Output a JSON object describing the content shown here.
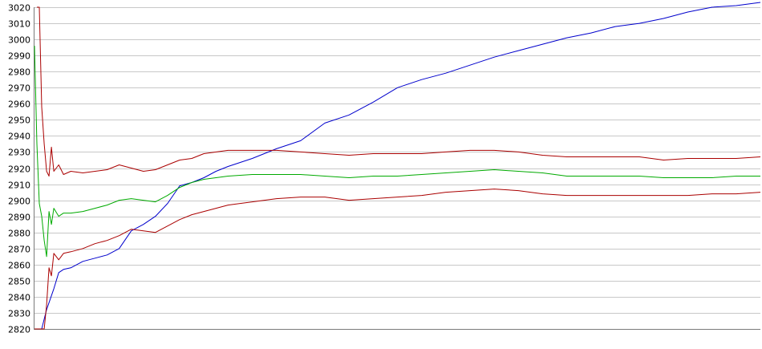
{
  "chart_data": {
    "type": "line",
    "title": "",
    "xlabel": "",
    "ylabel": "",
    "ylim": [
      2820,
      3020
    ],
    "yticks": [
      3020,
      3010,
      3000,
      2990,
      2980,
      2970,
      2960,
      2950,
      2940,
      2930,
      2920,
      2910,
      2900,
      2890,
      2880,
      2870,
      2860,
      2850,
      2840,
      2830,
      2820
    ],
    "xlim": [
      0,
      300
    ],
    "grid": true,
    "legend": "none",
    "series": [
      {
        "color": "#0000cc",
        "x": [
          0,
          3,
          5,
          8,
          10,
          12,
          15,
          20,
          25,
          30,
          35,
          40,
          45,
          50,
          55,
          60,
          65,
          70,
          75,
          80,
          90,
          100,
          110,
          120,
          130,
          140,
          150,
          160,
          170,
          180,
          190,
          200,
          210,
          220,
          230,
          240,
          250,
          260,
          270,
          280,
          290,
          295,
          300
        ],
        "values": [
          2820,
          2820,
          2832,
          2845,
          2855,
          2857,
          2858,
          2862,
          2864,
          2866,
          2870,
          2881,
          2885,
          2890,
          2898,
          2909,
          2911,
          2914,
          2918,
          2921,
          2926,
          2932,
          2937,
          2948,
          2953,
          2961,
          2970,
          2975,
          2979,
          2984,
          2989,
          2993,
          2997,
          3001,
          3004,
          3008,
          3010,
          3013,
          3017,
          3020,
          3021,
          3022,
          3023
        ]
      },
      {
        "color": "#00aa00",
        "x": [
          0,
          1,
          2,
          3,
          4,
          5,
          6,
          7,
          8,
          10,
          12,
          15,
          20,
          25,
          30,
          35,
          40,
          45,
          50,
          55,
          60,
          65,
          70,
          80,
          90,
          100,
          110,
          120,
          130,
          140,
          150,
          160,
          170,
          180,
          190,
          200,
          210,
          220,
          230,
          240,
          250,
          260,
          270,
          280,
          290,
          300
        ],
        "values": [
          2996,
          2935,
          2898,
          2890,
          2875,
          2865,
          2893,
          2885,
          2895,
          2890,
          2892,
          2892,
          2893,
          2895,
          2897,
          2900,
          2901,
          2900,
          2899,
          2903,
          2908,
          2911,
          2913,
          2915,
          2916,
          2916,
          2916,
          2915,
          2914,
          2915,
          2915,
          2916,
          2917,
          2918,
          2919,
          2918,
          2917,
          2915,
          2915,
          2915,
          2915,
          2914,
          2914,
          2914,
          2915,
          2915
        ]
      },
      {
        "color": "#aa0000",
        "x": [
          1,
          2,
          3,
          4,
          5,
          6,
          7,
          8,
          10,
          12,
          15,
          20,
          25,
          30,
          35,
          40,
          45,
          50,
          55,
          60,
          65,
          70,
          80,
          90,
          100,
          110,
          120,
          130,
          140,
          150,
          160,
          170,
          180,
          190,
          200,
          210,
          220,
          230,
          240,
          250,
          260,
          270,
          280,
          290,
          300
        ],
        "values": [
          3020,
          3020,
          2958,
          2935,
          2918,
          2915,
          2933,
          2918,
          2922,
          2916,
          2918,
          2917,
          2918,
          2919,
          2922,
          2920,
          2918,
          2919,
          2922,
          2925,
          2926,
          2929,
          2931,
          2931,
          2931,
          2930,
          2929,
          2928,
          2929,
          2929,
          2929,
          2930,
          2931,
          2931,
          2930,
          2928,
          2927,
          2927,
          2927,
          2927,
          2925,
          2926,
          2926,
          2926,
          2927
        ]
      },
      {
        "color": "#aa0000",
        "x": [
          0,
          3,
          4,
          5,
          6,
          7,
          8,
          10,
          12,
          15,
          20,
          25,
          30,
          35,
          40,
          45,
          50,
          55,
          60,
          65,
          70,
          80,
          90,
          100,
          110,
          120,
          130,
          140,
          150,
          160,
          170,
          180,
          190,
          200,
          210,
          220,
          230,
          240,
          250,
          260,
          270,
          280,
          290,
          300
        ],
        "values": [
          2820,
          2820,
          2820,
          2835,
          2858,
          2853,
          2867,
          2863,
          2867,
          2868,
          2870,
          2873,
          2875,
          2878,
          2882,
          2881,
          2880,
          2884,
          2888,
          2891,
          2893,
          2897,
          2899,
          2901,
          2902,
          2902,
          2900,
          2901,
          2902,
          2903,
          2905,
          2906,
          2907,
          2906,
          2904,
          2903,
          2903,
          2903,
          2903,
          2903,
          2903,
          2904,
          2904,
          2905
        ]
      }
    ]
  }
}
